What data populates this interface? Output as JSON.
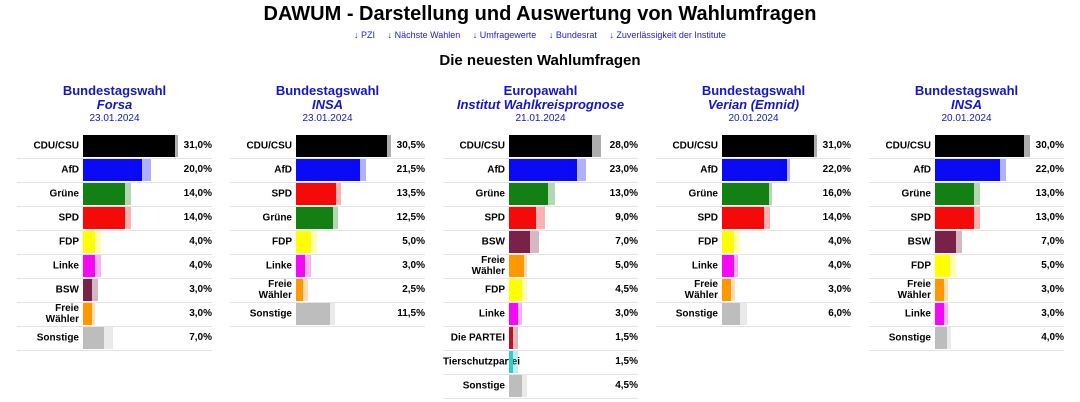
{
  "header": {
    "title": "DAWUM - Darstellung und Auswertung von Wahlumfragen",
    "nav": [
      "↓ PZI",
      "↓ Nächste Wahlen",
      "↓ Umfragewerte",
      "↓ Bundesrat",
      "↓ Zuverlässigkeit der Institute"
    ],
    "subtitle": "Die neuesten Wahlumfragen"
  },
  "party_colors": {
    "CDU/CSU": "#000000",
    "AfD": "#0a0af5",
    "Grüne": "#128012",
    "SPD": "#f50a0a",
    "FDP": "#ffff00",
    "Linke": "#f50af5",
    "BSW": "#7a2149",
    "Freie Wähler": "#ff9900",
    "Sonstige": "#bdbdbd",
    "Die PARTEI": "#b5152b",
    "Tierschutzpartei": "#33cccc"
  },
  "chart_data": [
    {
      "type": "bar",
      "election": "Bundestagswahl",
      "institute": "Forsa",
      "date": "23.01.2024",
      "max_value": 31,
      "rows": [
        {
          "party": "CDU/CSU",
          "value": 31.0,
          "label": "31,0%",
          "previous": 31.0
        },
        {
          "party": "AfD",
          "value": 20.0,
          "label": "20,0%",
          "previous": 22.0
        },
        {
          "party": "Grüne",
          "value": 14.0,
          "label": "14,0%",
          "previous": 15.0
        },
        {
          "party": "SPD",
          "value": 14.0,
          "label": "14,0%",
          "previous": 15.0
        },
        {
          "party": "FDP",
          "value": 4.0,
          "label": "4,0%",
          "previous": 5.0
        },
        {
          "party": "Linke",
          "value": 4.0,
          "label": "4,0%",
          "previous": 5.0
        },
        {
          "party": "BSW",
          "value": 3.0,
          "label": "3,0%",
          "previous": 4.0
        },
        {
          "party": "Freie Wähler",
          "value": 3.0,
          "label": "3,0%",
          "previous": 3.0
        },
        {
          "party": "Sonstige",
          "value": 7.0,
          "label": "7,0%",
          "previous": 9.0
        }
      ]
    },
    {
      "type": "bar",
      "election": "Bundestagswahl",
      "institute": "INSA",
      "date": "23.01.2024",
      "max_value": 31,
      "rows": [
        {
          "party": "CDU/CSU",
          "value": 30.5,
          "label": "30,5%",
          "previous": 31.0
        },
        {
          "party": "AfD",
          "value": 21.5,
          "label": "21,5%",
          "previous": 22.5
        },
        {
          "party": "SPD",
          "value": 13.5,
          "label": "13,5%",
          "previous": 14.0
        },
        {
          "party": "Grüne",
          "value": 12.5,
          "label": "12,5%",
          "previous": 13.0
        },
        {
          "party": "FDP",
          "value": 5.0,
          "label": "5,0%",
          "previous": 6.0
        },
        {
          "party": "Linke",
          "value": 3.0,
          "label": "3,0%",
          "previous": 4.0
        },
        {
          "party": "Freie Wähler",
          "value": 2.5,
          "label": "2,5%",
          "previous": 3.0
        },
        {
          "party": "Sonstige",
          "value": 11.5,
          "label": "11,5%",
          "previous": 12.0
        }
      ]
    },
    {
      "type": "bar",
      "election": "Europawahl",
      "institute": "Institut Wahlkreisprognose",
      "date": "21.01.2024",
      "max_value": 31,
      "rows": [
        {
          "party": "CDU/CSU",
          "value": 28.0,
          "label": "28,0%",
          "previous": 30.0
        },
        {
          "party": "AfD",
          "value": 23.0,
          "label": "23,0%",
          "previous": 25.0
        },
        {
          "party": "Grüne",
          "value": 13.0,
          "label": "13,0%",
          "previous": 14.5
        },
        {
          "party": "SPD",
          "value": 9.0,
          "label": "9,0%",
          "previous": 11.0
        },
        {
          "party": "BSW",
          "value": 7.0,
          "label": "7,0%",
          "previous": 9.0
        },
        {
          "party": "Freie Wähler",
          "value": 5.0,
          "label": "5,0%",
          "previous": 5.0
        },
        {
          "party": "FDP",
          "value": 4.5,
          "label": "4,5%",
          "previous": 5.0
        },
        {
          "party": "Linke",
          "value": 3.0,
          "label": "3,0%",
          "previous": 3.5
        },
        {
          "party": "Die PARTEI",
          "value": 1.5,
          "label": "1,5%",
          "previous": 2.0
        },
        {
          "party": "Tierschutzpartei",
          "value": 1.5,
          "label": "1,5%",
          "previous": 2.0
        },
        {
          "party": "Sonstige",
          "value": 4.5,
          "label": "4,5%",
          "previous": 5.0
        }
      ]
    },
    {
      "type": "bar",
      "election": "Bundestagswahl",
      "institute": "Verian (Emnid)",
      "date": "20.01.2024",
      "max_value": 31,
      "rows": [
        {
          "party": "CDU/CSU",
          "value": 31.0,
          "label": "31,0%",
          "previous": 31.0
        },
        {
          "party": "AfD",
          "value": 22.0,
          "label": "22,0%",
          "previous": 22.0
        },
        {
          "party": "Grüne",
          "value": 16.0,
          "label": "16,0%",
          "previous": 16.0
        },
        {
          "party": "SPD",
          "value": 14.0,
          "label": "14,0%",
          "previous": 15.0
        },
        {
          "party": "FDP",
          "value": 4.0,
          "label": "4,0%",
          "previous": 5.0
        },
        {
          "party": "Linke",
          "value": 4.0,
          "label": "4,0%",
          "previous": 4.5
        },
        {
          "party": "Freie Wähler",
          "value": 3.0,
          "label": "3,0%",
          "previous": 3.5
        },
        {
          "party": "Sonstige",
          "value": 6.0,
          "label": "6,0%",
          "previous": 7.5
        }
      ]
    },
    {
      "type": "bar",
      "election": "Bundestagswahl",
      "institute": "INSA",
      "date": "20.01.2024",
      "max_value": 31,
      "rows": [
        {
          "party": "CDU/CSU",
          "value": 30.0,
          "label": "30,0%",
          "previous": 31.0
        },
        {
          "party": "AfD",
          "value": 22.0,
          "label": "22,0%",
          "previous": 23.0
        },
        {
          "party": "Grüne",
          "value": 13.0,
          "label": "13,0%",
          "previous": 14.0
        },
        {
          "party": "SPD",
          "value": 13.0,
          "label": "13,0%",
          "previous": 14.0
        },
        {
          "party": "BSW",
          "value": 7.0,
          "label": "7,0%",
          "previous": 8.0
        },
        {
          "party": "FDP",
          "value": 5.0,
          "label": "5,0%",
          "previous": 6.0
        },
        {
          "party": "Freie Wähler",
          "value": 3.0,
          "label": "3,0%",
          "previous": 3.5
        },
        {
          "party": "Linke",
          "value": 3.0,
          "label": "3,0%",
          "previous": 3.5
        },
        {
          "party": "Sonstige",
          "value": 4.0,
          "label": "4,0%",
          "previous": 4.5
        }
      ]
    }
  ]
}
